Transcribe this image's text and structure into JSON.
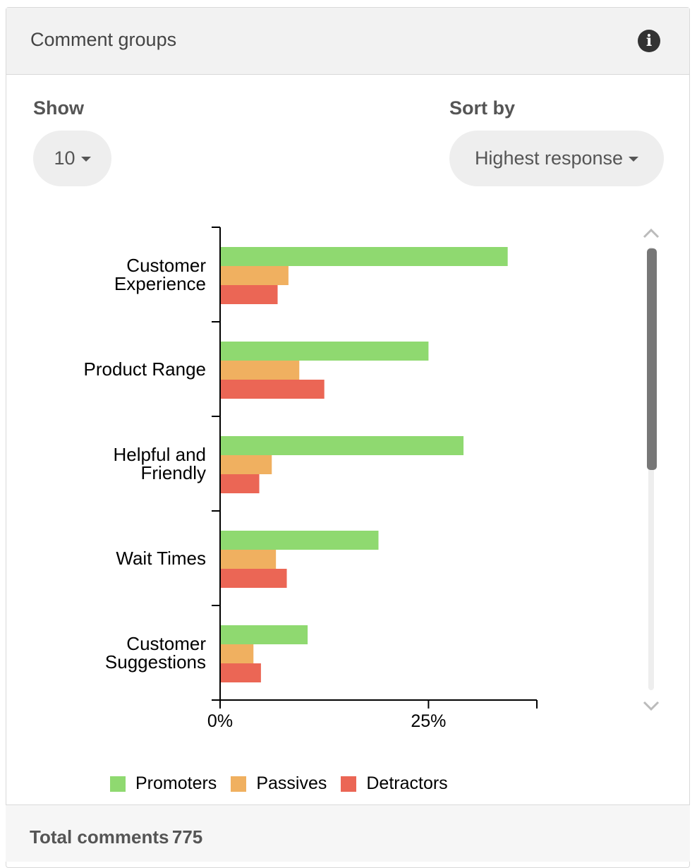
{
  "header": {
    "title": "Comment groups"
  },
  "controls": {
    "show_label": "Show",
    "show_value": "10",
    "sort_label": "Sort by",
    "sort_value": "Highest response"
  },
  "chart_data": {
    "type": "bar",
    "orientation": "horizontal",
    "categories": [
      "Customer Experience",
      "Product Range",
      "Helpful and Friendly",
      "Wait Times",
      "Customer Suggestions"
    ],
    "series": [
      {
        "name": "Promoters",
        "color": "#8fd970",
        "values": [
          34.5,
          25,
          29.2,
          19,
          10.5
        ]
      },
      {
        "name": "Passives",
        "color": "#f0b060",
        "values": [
          8.2,
          9.5,
          6.2,
          6.7,
          4
        ]
      },
      {
        "name": "Detractors",
        "color": "#eb6655",
        "values": [
          6.9,
          12.5,
          4.7,
          8,
          4.9
        ]
      }
    ],
    "xlim": [
      0,
      38
    ],
    "xticks": [
      {
        "value": 0,
        "label": "0%"
      },
      {
        "value": 25,
        "label": "25%"
      }
    ]
  },
  "footer": {
    "label": "Total comments",
    "value": 775
  }
}
